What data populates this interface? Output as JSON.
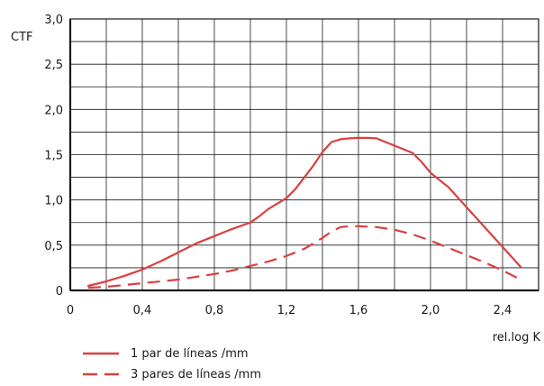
{
  "chart_data": {
    "type": "line",
    "ylabel": "CTF",
    "xlabel": "rel.log K",
    "xlim": [
      0,
      2.6
    ],
    "ylim": [
      0,
      3.0
    ],
    "x_ticks": [
      0,
      0.4,
      0.8,
      1.2,
      1.6,
      2.0,
      2.4
    ],
    "x_tick_labels": [
      "0",
      "0,4",
      "0,8",
      "1,2",
      "1,6",
      "2,0",
      "2,4"
    ],
    "y_ticks": [
      0,
      0.5,
      1.0,
      1.5,
      2.0,
      2.5,
      3.0
    ],
    "y_tick_labels": [
      "0",
      "0,5",
      "1,0",
      "1,5",
      "2,0",
      "2,5",
      "3,0"
    ],
    "grid": true,
    "legend_position": "bottom-left",
    "series_color": "#d94040",
    "series": [
      {
        "name": "1 par de líneas /mm",
        "style": "solid",
        "x": [
          0.1,
          0.2,
          0.3,
          0.4,
          0.5,
          0.6,
          0.7,
          0.8,
          0.9,
          1.0,
          1.05,
          1.1,
          1.15,
          1.2,
          1.25,
          1.3,
          1.35,
          1.4,
          1.45,
          1.5,
          1.55,
          1.6,
          1.65,
          1.7,
          1.75,
          1.8,
          1.85,
          1.9,
          1.95,
          2.0,
          2.1,
          2.2,
          2.3,
          2.4,
          2.5
        ],
        "y": [
          0.05,
          0.1,
          0.16,
          0.23,
          0.32,
          0.42,
          0.52,
          0.6,
          0.68,
          0.75,
          0.82,
          0.9,
          0.96,
          1.02,
          1.12,
          1.25,
          1.38,
          1.53,
          1.64,
          1.67,
          1.68,
          1.685,
          1.685,
          1.68,
          1.64,
          1.6,
          1.56,
          1.52,
          1.42,
          1.3,
          1.14,
          0.92,
          0.7,
          0.48,
          0.26
        ]
      },
      {
        "name": "3 pares de líneas /mm",
        "style": "dashed",
        "x": [
          0.1,
          0.2,
          0.3,
          0.4,
          0.5,
          0.6,
          0.7,
          0.8,
          0.9,
          1.0,
          1.1,
          1.2,
          1.3,
          1.4,
          1.45,
          1.5,
          1.55,
          1.6,
          1.7,
          1.8,
          1.9,
          2.0,
          2.1,
          2.2,
          2.3,
          2.4,
          2.5
        ],
        "y": [
          0.03,
          0.04,
          0.06,
          0.08,
          0.1,
          0.12,
          0.15,
          0.18,
          0.22,
          0.27,
          0.32,
          0.38,
          0.46,
          0.58,
          0.65,
          0.7,
          0.71,
          0.71,
          0.7,
          0.67,
          0.62,
          0.55,
          0.47,
          0.39,
          0.31,
          0.22,
          0.12
        ]
      }
    ]
  }
}
